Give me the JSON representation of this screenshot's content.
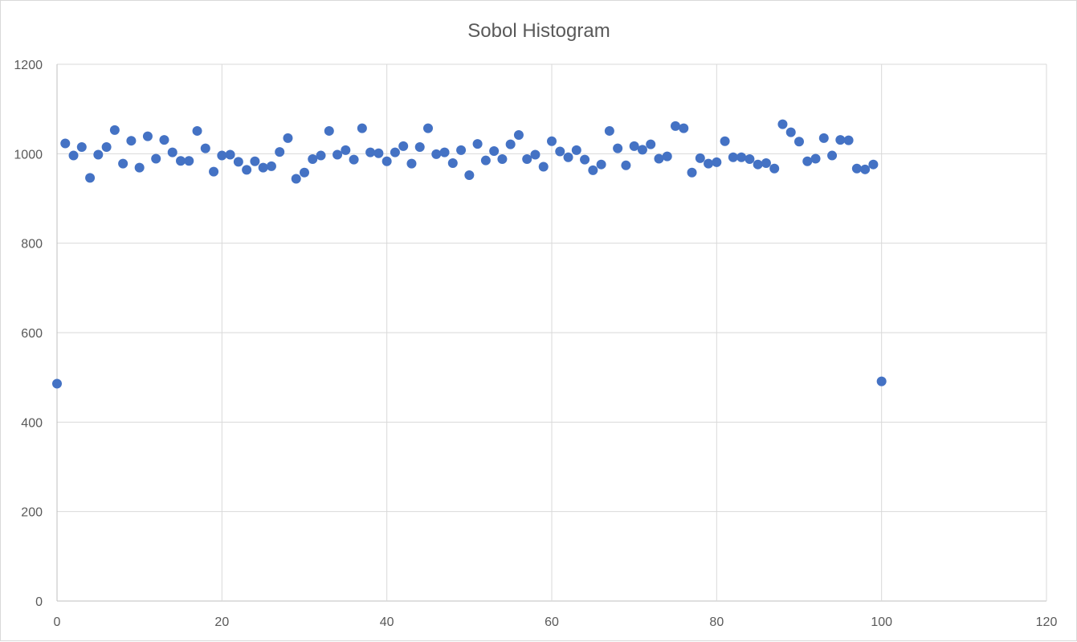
{
  "chart_data": {
    "type": "scatter",
    "title": "Sobol Histogram",
    "xlabel": "",
    "ylabel": "",
    "xlim": [
      0,
      120
    ],
    "ylim": [
      0,
      1200
    ],
    "x_ticks": [
      0,
      20,
      40,
      60,
      80,
      100,
      120
    ],
    "y_ticks": [
      0,
      200,
      400,
      600,
      800,
      1000,
      1200
    ],
    "grid": true,
    "legend": "none",
    "marker_color": "#4472c4",
    "series": [
      {
        "x": [
          0,
          1,
          2,
          3,
          4,
          5,
          6,
          7,
          8,
          9,
          10,
          11,
          12,
          13,
          14,
          15,
          16,
          17,
          18,
          19,
          20,
          21,
          22,
          23,
          24,
          25,
          26,
          27,
          28,
          29,
          30,
          31,
          32,
          33,
          34,
          35,
          36,
          37,
          38,
          39,
          40,
          41,
          42,
          43,
          44,
          45,
          46,
          47,
          48,
          49,
          50,
          51,
          52,
          53,
          54,
          55,
          56,
          57,
          58,
          59,
          60,
          61,
          62,
          63,
          64,
          65,
          66,
          67,
          68,
          69,
          70,
          71,
          72,
          73,
          74,
          75,
          76,
          77,
          78,
          79,
          80,
          81,
          82,
          83,
          84,
          85,
          86,
          87,
          88,
          89,
          90,
          91,
          92,
          93,
          94,
          95,
          96,
          97,
          98,
          99,
          100
        ],
        "y": [
          486,
          1023,
          996,
          1015,
          946,
          998,
          1015,
          1053,
          978,
          1029,
          969,
          1039,
          989,
          1031,
          1003,
          984,
          984,
          1051,
          1012,
          960,
          996,
          998,
          982,
          964,
          983,
          969,
          972,
          1004,
          1035,
          944,
          958,
          988,
          996,
          1051,
          998,
          1008,
          987,
          1057,
          1003,
          1001,
          983,
          1003,
          1017,
          978,
          1015,
          1057,
          999,
          1003,
          979,
          1008,
          952,
          1022,
          985,
          1006,
          988,
          1021,
          1042,
          988,
          998,
          971,
          1028,
          1005,
          992,
          1008,
          987,
          963,
          976,
          1051,
          1012,
          974,
          1017,
          1009,
          1021,
          989,
          994,
          1062,
          1057,
          958,
          990,
          978,
          981,
          1028,
          992,
          992,
          988,
          976,
          979,
          967,
          1066,
          1048,
          1027,
          983,
          989,
          1035,
          996,
          1031,
          1030,
          967,
          965,
          976,
          491
        ]
      }
    ]
  }
}
